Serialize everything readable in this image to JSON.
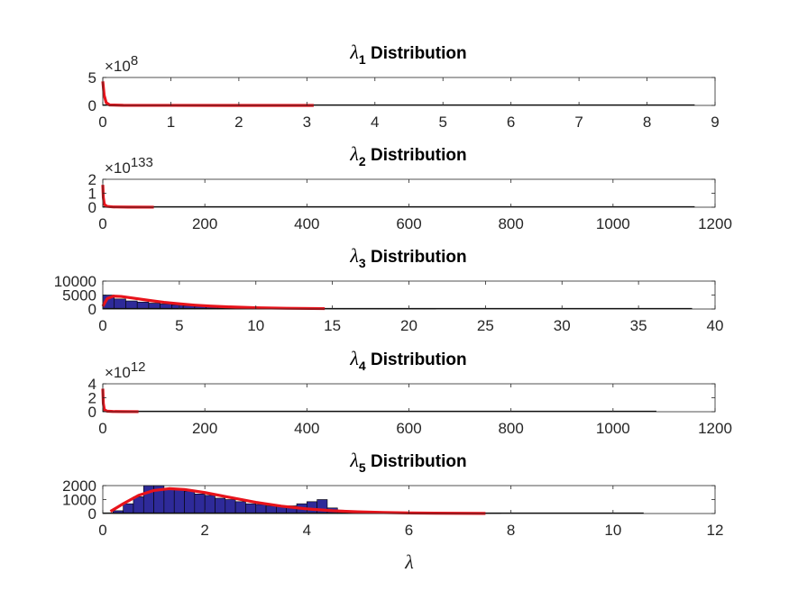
{
  "figure": {
    "xlabel": "λ"
  },
  "chart_data": [
    {
      "type": "bar",
      "title_symbol": "λ",
      "title_sub": "1",
      "title_text": "Distribution",
      "exponent_base": "×10",
      "exponent_power": "8",
      "xlim": [
        0,
        9
      ],
      "ylim": [
        0,
        5
      ],
      "xticks": [
        0,
        1,
        2,
        3,
        4,
        5,
        6,
        7,
        8,
        9
      ],
      "xtick_labels": [
        "0",
        "1",
        "2",
        "3",
        "4",
        "5",
        "6",
        "7",
        "8",
        "9"
      ],
      "yticks": [
        0,
        5
      ],
      "ytick_labels": [
        "0",
        "5"
      ],
      "hist_extent": [
        0,
        8.7
      ],
      "hist_values": [],
      "curve": {
        "x": [
          0,
          0.02,
          0.05,
          0.1,
          0.3,
          1,
          2,
          3.1
        ],
        "y": [
          4.3,
          1.8,
          0.5,
          0.08,
          0.02,
          0.01,
          0.005,
          0.002
        ]
      },
      "colors": {
        "bar": "#2e2a99",
        "curve": "#e8131b"
      }
    },
    {
      "type": "bar",
      "title_symbol": "λ",
      "title_sub": "2",
      "title_text": "Distribution",
      "exponent_base": "×10",
      "exponent_power": "133",
      "xlim": [
        0,
        1200
      ],
      "ylim": [
        0,
        2
      ],
      "xticks": [
        0,
        200,
        400,
        600,
        800,
        1000,
        1200
      ],
      "xtick_labels": [
        "0",
        "200",
        "400",
        "600",
        "800",
        "1000",
        "1200"
      ],
      "yticks": [
        0,
        1,
        2
      ],
      "ytick_labels": [
        "0",
        "1",
        "2"
      ],
      "hist_extent": [
        0,
        1160
      ],
      "hist_values": [],
      "curve": {
        "x": [
          0,
          1,
          3,
          8,
          20,
          50,
          100
        ],
        "y": [
          1.6,
          0.7,
          0.2,
          0.06,
          0.02,
          0.01,
          0.005
        ]
      },
      "colors": {
        "bar": "#2e2a99",
        "curve": "#e8131b"
      }
    },
    {
      "type": "bar",
      "title_symbol": "λ",
      "title_sub": "3",
      "title_text": "Distribution",
      "exponent_base": "",
      "exponent_power": "",
      "xlim": [
        0,
        40
      ],
      "ylim": [
        0,
        10000
      ],
      "xticks": [
        0,
        5,
        10,
        15,
        20,
        25,
        30,
        35,
        40
      ],
      "xtick_labels": [
        "0",
        "5",
        "10",
        "15",
        "20",
        "25",
        "30",
        "35",
        "40"
      ],
      "yticks": [
        0,
        5000,
        10000
      ],
      "ytick_labels": [
        "0",
        "5000",
        "10000"
      ],
      "hist_extent": [
        0,
        38.5
      ],
      "hist_values": [
        5000,
        3600,
        2900,
        2500,
        2100,
        1800,
        1500,
        1200,
        950,
        750,
        580,
        450,
        350,
        270,
        200,
        150,
        110,
        80,
        60,
        40,
        30,
        20,
        15,
        10,
        8,
        6,
        4,
        3,
        2,
        1
      ],
      "hist_bin_width": 0.75,
      "curve": {
        "x": [
          0,
          0.3,
          0.7,
          1.2,
          2,
          3,
          4,
          5,
          6,
          7,
          8,
          10,
          12,
          14.5
        ],
        "y": [
          1000,
          3800,
          4600,
          4500,
          3900,
          3100,
          2400,
          1850,
          1400,
          1050,
          800,
          450,
          260,
          150
        ]
      },
      "colors": {
        "bar": "#2e2a99",
        "curve": "#e8131b"
      }
    },
    {
      "type": "bar",
      "title_symbol": "λ",
      "title_sub": "4",
      "title_text": "Distribution",
      "exponent_base": "×10",
      "exponent_power": "12",
      "xlim": [
        0,
        1200
      ],
      "ylim": [
        0,
        4
      ],
      "xticks": [
        0,
        200,
        400,
        600,
        800,
        1000,
        1200
      ],
      "xtick_labels": [
        "0",
        "200",
        "400",
        "600",
        "800",
        "1000",
        "1200"
      ],
      "yticks": [
        0,
        2,
        4
      ],
      "ytick_labels": [
        "0",
        "2",
        "4"
      ],
      "hist_extent": [
        0,
        1085
      ],
      "hist_values": [],
      "curve": {
        "x": [
          0,
          1,
          3,
          8,
          20,
          40,
          70
        ],
        "y": [
          3.3,
          1.2,
          0.3,
          0.08,
          0.03,
          0.015,
          0.01
        ]
      },
      "colors": {
        "bar": "#2e2a99",
        "curve": "#e8131b"
      }
    },
    {
      "type": "bar",
      "title_symbol": "λ",
      "title_sub": "5",
      "title_text": "Distribution",
      "exponent_base": "",
      "exponent_power": "",
      "xlim": [
        0,
        12
      ],
      "ylim": [
        0,
        2000
      ],
      "xticks": [
        0,
        2,
        4,
        6,
        8,
        10,
        12
      ],
      "xtick_labels": [
        "0",
        "2",
        "4",
        "6",
        "8",
        "10",
        "12"
      ],
      "yticks": [
        0,
        1000,
        2000
      ],
      "ytick_labels": [
        "0",
        "1000",
        "2000"
      ],
      "hist_extent": [
        0,
        10.6
      ],
      "hist_start": 0.2,
      "hist_bin_width": 0.2,
      "hist_values": [
        200,
        700,
        1200,
        2000,
        2000,
        1750,
        1700,
        1600,
        1400,
        1300,
        1100,
        1000,
        850,
        700,
        650,
        550,
        500,
        550,
        700,
        850,
        1000,
        400,
        150,
        60,
        30,
        20,
        15,
        10,
        8,
        6,
        5,
        4,
        3,
        3,
        2,
        2,
        1,
        1
      ],
      "curve": {
        "x": [
          0.15,
          0.4,
          0.7,
          1,
          1.3,
          1.6,
          2,
          2.5,
          3,
          3.5,
          4,
          4.5,
          5,
          5.5,
          6,
          6.5,
          7,
          7.5
        ],
        "y": [
          150,
          700,
          1300,
          1650,
          1780,
          1720,
          1500,
          1150,
          800,
          530,
          330,
          200,
          120,
          70,
          40,
          25,
          15,
          10
        ]
      },
      "colors": {
        "bar": "#2e2a99",
        "curve": "#e8131b"
      }
    }
  ]
}
